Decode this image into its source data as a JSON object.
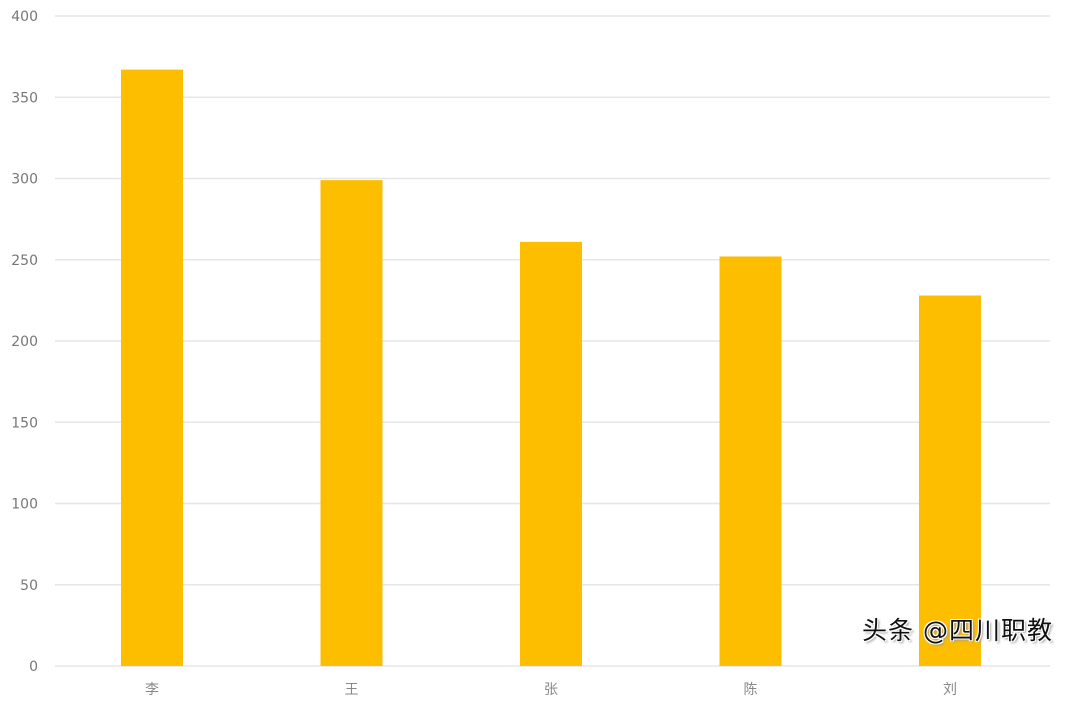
{
  "chart_data": {
    "type": "bar",
    "title": "",
    "xlabel": "",
    "ylabel": "",
    "categories": [
      "李",
      "王",
      "张",
      "陈",
      "刘"
    ],
    "values": [
      367,
      299,
      261,
      252,
      228
    ],
    "ylim": [
      0,
      400
    ],
    "yticks": [
      0,
      50,
      100,
      150,
      200,
      250,
      300,
      350,
      400
    ],
    "grid": true,
    "bar_color": "#FDBE00",
    "grid_color": "#e6e6e6"
  },
  "watermark": "头条 @四川职教"
}
